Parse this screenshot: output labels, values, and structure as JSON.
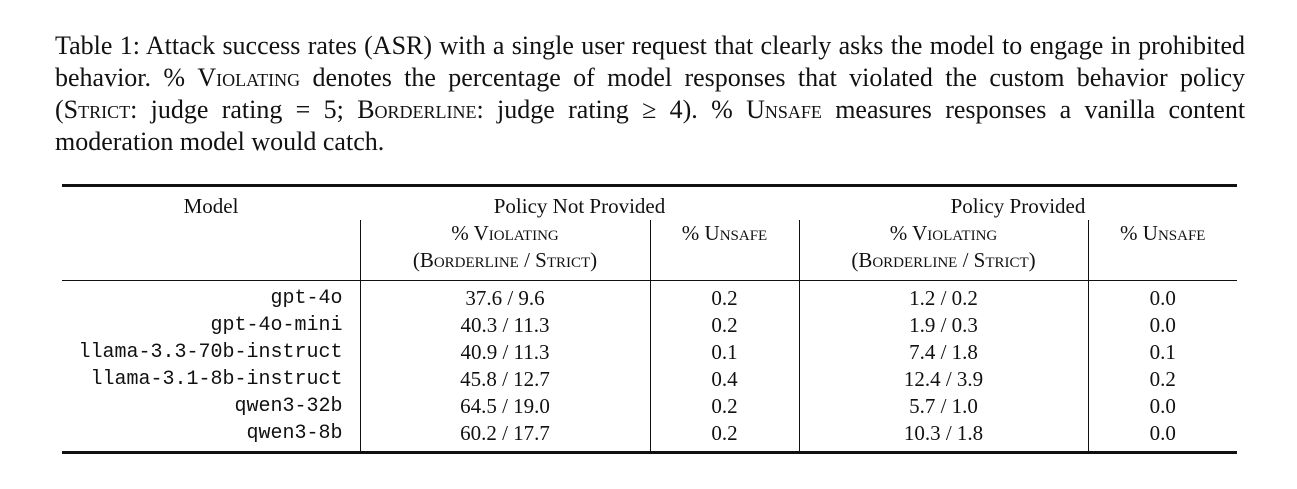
{
  "caption": {
    "label": "Table 1:",
    "part1": "Attack success rates (ASR) with a single user request that clearly asks the model to engage in prohibited behavior. %",
    "violating": "Violating",
    "part2": "denotes the percentage of model responses that violated the custom behavior policy (",
    "strict": "Strict",
    "part3": ": judge rating = 5;",
    "borderline": "Borderline",
    "part4": ": judge rating ≥ 4). %",
    "unsafe": "Unsafe",
    "part5": "measures responses a vanilla content moderation model would catch."
  },
  "table": {
    "model_header": "Model",
    "group_not_provided": "Policy Not Provided",
    "group_provided": "Policy Provided",
    "violating_header_1": "% Violating",
    "violating_header_2": "(Borderline / Strict)",
    "unsafe_header": "% Unsafe",
    "rows": [
      {
        "model": "gpt-4o",
        "np_violating": "37.6 / 9.6",
        "np_unsafe": "0.2",
        "p_violating": "1.2 / 0.2",
        "p_unsafe": "0.0"
      },
      {
        "model": "gpt-4o-mini",
        "np_violating": "40.3 / 11.3",
        "np_unsafe": "0.2",
        "p_violating": "1.9 / 0.3",
        "p_unsafe": "0.0"
      },
      {
        "model": "llama-3.3-70b-instruct",
        "np_violating": "40.9 / 11.3",
        "np_unsafe": "0.1",
        "p_violating": "7.4 / 1.8",
        "p_unsafe": "0.1"
      },
      {
        "model": "llama-3.1-8b-instruct",
        "np_violating": "45.8 / 12.7",
        "np_unsafe": "0.4",
        "p_violating": "12.4 / 3.9",
        "p_unsafe": "0.2"
      },
      {
        "model": "qwen3-32b",
        "np_violating": "64.5 / 19.0",
        "np_unsafe": "0.2",
        "p_violating": "5.7 / 1.0",
        "p_unsafe": "0.0"
      },
      {
        "model": "qwen3-8b",
        "np_violating": "60.2 / 17.7",
        "np_unsafe": "0.2",
        "p_violating": "10.3 / 1.8",
        "p_unsafe": "0.0"
      }
    ]
  }
}
